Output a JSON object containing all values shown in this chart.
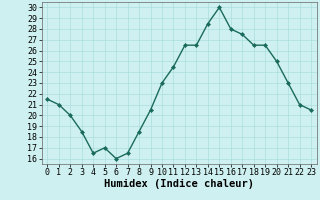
{
  "title": "",
  "xlabel": "Humidex (Indice chaleur)",
  "ylabel": "",
  "x": [
    0,
    1,
    2,
    3,
    4,
    5,
    6,
    7,
    8,
    9,
    10,
    11,
    12,
    13,
    14,
    15,
    16,
    17,
    18,
    19,
    20,
    21,
    22,
    23
  ],
  "y": [
    21.5,
    21.0,
    20.0,
    18.5,
    16.5,
    17.0,
    16.0,
    16.5,
    18.5,
    20.5,
    23.0,
    24.5,
    26.5,
    26.5,
    28.5,
    30.0,
    28.0,
    27.5,
    26.5,
    26.5,
    25.0,
    23.0,
    21.0,
    20.5
  ],
  "line_color": "#1a6b5a",
  "marker": "D",
  "marker_size": 2.0,
  "bg_color": "#cff0f0",
  "grid_color": "#aadddd",
  "ylim": [
    15.5,
    30.5
  ],
  "xlim": [
    -0.5,
    23.5
  ],
  "yticks": [
    16,
    17,
    18,
    19,
    20,
    21,
    22,
    23,
    24,
    25,
    26,
    27,
    28,
    29,
    30
  ],
  "xticks": [
    0,
    1,
    2,
    3,
    4,
    5,
    6,
    7,
    8,
    9,
    10,
    11,
    12,
    13,
    14,
    15,
    16,
    17,
    18,
    19,
    20,
    21,
    22,
    23
  ],
  "tick_fontsize": 6,
  "xlabel_fontsize": 7.5,
  "line_width": 1.0
}
